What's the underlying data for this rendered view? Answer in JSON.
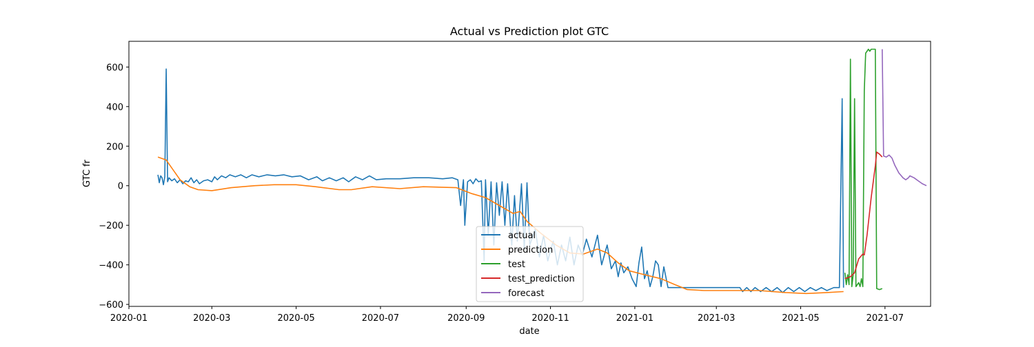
{
  "chart_data": {
    "type": "line",
    "title": "Actual vs Prediction plot GTC",
    "xlabel": "date",
    "ylabel": "GTC fr",
    "xlim": [
      "2020-01-01",
      "2021-08-03"
    ],
    "ylim": [
      -610,
      730
    ],
    "x_ticks": [
      "2020-01",
      "2020-03",
      "2020-05",
      "2020-07",
      "2020-09",
      "2020-11",
      "2021-01",
      "2021-03",
      "2021-05",
      "2021-07"
    ],
    "y_ticks": [
      -600,
      -400,
      -200,
      0,
      200,
      400,
      600
    ],
    "grid": false,
    "legend_position": "lower center",
    "series": [
      {
        "name": "actual",
        "color": "#1f77b4",
        "points": [
          [
            "2020-01-22",
            55
          ],
          [
            "2020-01-23",
            15
          ],
          [
            "2020-01-24",
            50
          ],
          [
            "2020-01-25",
            40
          ],
          [
            "2020-01-26",
            5
          ],
          [
            "2020-01-27",
            45
          ],
          [
            "2020-01-28",
            590
          ],
          [
            "2020-01-29",
            20
          ],
          [
            "2020-01-30",
            40
          ],
          [
            "2020-02-01",
            25
          ],
          [
            "2020-02-03",
            35
          ],
          [
            "2020-02-05",
            15
          ],
          [
            "2020-02-07",
            30
          ],
          [
            "2020-02-09",
            10
          ],
          [
            "2020-02-11",
            25
          ],
          [
            "2020-02-13",
            20
          ],
          [
            "2020-02-15",
            40
          ],
          [
            "2020-02-17",
            15
          ],
          [
            "2020-02-19",
            30
          ],
          [
            "2020-02-21",
            10
          ],
          [
            "2020-02-24",
            25
          ],
          [
            "2020-02-27",
            30
          ],
          [
            "2020-03-01",
            20
          ],
          [
            "2020-03-03",
            45
          ],
          [
            "2020-03-05",
            30
          ],
          [
            "2020-03-08",
            50
          ],
          [
            "2020-03-11",
            40
          ],
          [
            "2020-03-14",
            55
          ],
          [
            "2020-03-18",
            45
          ],
          [
            "2020-03-22",
            55
          ],
          [
            "2020-03-26",
            40
          ],
          [
            "2020-03-30",
            55
          ],
          [
            "2020-04-04",
            45
          ],
          [
            "2020-04-10",
            55
          ],
          [
            "2020-04-16",
            50
          ],
          [
            "2020-04-22",
            55
          ],
          [
            "2020-04-28",
            45
          ],
          [
            "2020-05-04",
            50
          ],
          [
            "2020-05-10",
            30
          ],
          [
            "2020-05-16",
            45
          ],
          [
            "2020-05-20",
            25
          ],
          [
            "2020-05-25",
            40
          ],
          [
            "2020-05-30",
            25
          ],
          [
            "2020-06-04",
            40
          ],
          [
            "2020-06-08",
            20
          ],
          [
            "2020-06-13",
            45
          ],
          [
            "2020-06-18",
            30
          ],
          [
            "2020-06-23",
            50
          ],
          [
            "2020-06-28",
            30
          ],
          [
            "2020-07-05",
            35
          ],
          [
            "2020-07-15",
            35
          ],
          [
            "2020-07-25",
            40
          ],
          [
            "2020-08-05",
            40
          ],
          [
            "2020-08-15",
            35
          ],
          [
            "2020-08-22",
            40
          ],
          [
            "2020-08-26",
            30
          ],
          [
            "2020-08-28",
            -100
          ],
          [
            "2020-08-30",
            30
          ],
          [
            "2020-08-31",
            -200
          ],
          [
            "2020-09-02",
            20
          ],
          [
            "2020-09-04",
            30
          ],
          [
            "2020-09-06",
            10
          ],
          [
            "2020-09-08",
            35
          ],
          [
            "2020-09-10",
            20
          ],
          [
            "2020-09-12",
            25
          ],
          [
            "2020-09-14",
            -380
          ],
          [
            "2020-09-15",
            30
          ],
          [
            "2020-09-17",
            -250
          ],
          [
            "2020-09-19",
            20
          ],
          [
            "2020-09-21",
            -300
          ],
          [
            "2020-09-23",
            15
          ],
          [
            "2020-09-25",
            -150
          ],
          [
            "2020-09-27",
            20
          ],
          [
            "2020-09-29",
            -200
          ],
          [
            "2020-10-01",
            10
          ],
          [
            "2020-10-04",
            -300
          ],
          [
            "2020-10-06",
            -50
          ],
          [
            "2020-10-08",
            -280
          ],
          [
            "2020-10-11",
            10
          ],
          [
            "2020-10-13",
            -320
          ],
          [
            "2020-10-15",
            15
          ],
          [
            "2020-10-17",
            -300
          ],
          [
            "2020-10-21",
            -220
          ],
          [
            "2020-10-24",
            -360
          ],
          [
            "2020-10-27",
            -250
          ],
          [
            "2020-10-30",
            -380
          ],
          [
            "2020-11-03",
            -280
          ],
          [
            "2020-11-06",
            -400
          ],
          [
            "2020-11-09",
            -300
          ],
          [
            "2020-11-12",
            -380
          ],
          [
            "2020-11-15",
            -260
          ],
          [
            "2020-11-18",
            -400
          ],
          [
            "2020-11-21",
            -300
          ],
          [
            "2020-11-24",
            -350
          ],
          [
            "2020-11-27",
            -270
          ],
          [
            "2020-12-01",
            -360
          ],
          [
            "2020-12-05",
            -250
          ],
          [
            "2020-12-08",
            -400
          ],
          [
            "2020-12-12",
            -300
          ],
          [
            "2020-12-15",
            -420
          ],
          [
            "2020-12-18",
            -380
          ],
          [
            "2020-12-20",
            -460
          ],
          [
            "2020-12-22",
            -390
          ],
          [
            "2020-12-24",
            -440
          ],
          [
            "2020-12-27",
            -410
          ],
          [
            "2020-12-30",
            -470
          ],
          [
            "2021-01-02",
            -510
          ],
          [
            "2021-01-04",
            -390
          ],
          [
            "2021-01-06",
            -310
          ],
          [
            "2021-01-08",
            -470
          ],
          [
            "2021-01-10",
            -430
          ],
          [
            "2021-01-12",
            -510
          ],
          [
            "2021-01-14",
            -460
          ],
          [
            "2021-01-16",
            -380
          ],
          [
            "2021-01-18",
            -400
          ],
          [
            "2021-01-20",
            -510
          ],
          [
            "2021-01-22",
            -410
          ],
          [
            "2021-01-25",
            -515
          ],
          [
            "2021-03-18",
            -515
          ],
          [
            "2021-03-20",
            -535
          ],
          [
            "2021-03-23",
            -515
          ],
          [
            "2021-03-26",
            -535
          ],
          [
            "2021-03-29",
            -515
          ],
          [
            "2021-04-02",
            -535
          ],
          [
            "2021-04-06",
            -515
          ],
          [
            "2021-04-10",
            -535
          ],
          [
            "2021-04-14",
            -515
          ],
          [
            "2021-04-18",
            -540
          ],
          [
            "2021-04-22",
            -515
          ],
          [
            "2021-04-26",
            -535
          ],
          [
            "2021-04-30",
            -515
          ],
          [
            "2021-05-04",
            -535
          ],
          [
            "2021-05-08",
            -515
          ],
          [
            "2021-05-12",
            -530
          ],
          [
            "2021-05-16",
            -515
          ],
          [
            "2021-05-20",
            -530
          ],
          [
            "2021-05-25",
            -515
          ],
          [
            "2021-05-29",
            -515
          ],
          [
            "2021-05-31",
            440
          ],
          [
            "2021-06-01",
            -515
          ]
        ]
      },
      {
        "name": "prediction",
        "color": "#ff7f0e",
        "points": [
          [
            "2020-01-22",
            145
          ],
          [
            "2020-01-28",
            130
          ],
          [
            "2020-02-02",
            80
          ],
          [
            "2020-02-07",
            30
          ],
          [
            "2020-02-14",
            -5
          ],
          [
            "2020-02-20",
            -20
          ],
          [
            "2020-03-01",
            -25
          ],
          [
            "2020-03-15",
            -10
          ],
          [
            "2020-04-01",
            0
          ],
          [
            "2020-04-15",
            5
          ],
          [
            "2020-05-01",
            5
          ],
          [
            "2020-05-15",
            -5
          ],
          [
            "2020-06-01",
            -20
          ],
          [
            "2020-06-10",
            -20
          ],
          [
            "2020-06-25",
            -5
          ],
          [
            "2020-07-15",
            -15
          ],
          [
            "2020-08-01",
            -5
          ],
          [
            "2020-08-25",
            -10
          ],
          [
            "2020-09-05",
            -40
          ],
          [
            "2020-09-15",
            -60
          ],
          [
            "2020-09-25",
            -100
          ],
          [
            "2020-10-05",
            -140
          ],
          [
            "2020-10-10",
            -130
          ],
          [
            "2020-10-15",
            -180
          ],
          [
            "2020-10-25",
            -240
          ],
          [
            "2020-11-05",
            -300
          ],
          [
            "2020-11-15",
            -340
          ],
          [
            "2020-11-25",
            -345
          ],
          [
            "2020-12-05",
            -320
          ],
          [
            "2020-12-12",
            -340
          ],
          [
            "2020-12-20",
            -390
          ],
          [
            "2020-12-28",
            -430
          ],
          [
            "2021-01-08",
            -450
          ],
          [
            "2021-01-20",
            -470
          ],
          [
            "2021-01-30",
            -500
          ],
          [
            "2021-02-08",
            -525
          ],
          [
            "2021-02-20",
            -530
          ],
          [
            "2021-03-15",
            -530
          ],
          [
            "2021-04-01",
            -530
          ],
          [
            "2021-04-20",
            -540
          ],
          [
            "2021-05-05",
            -545
          ],
          [
            "2021-05-20",
            -540
          ],
          [
            "2021-06-01",
            -535
          ]
        ]
      },
      {
        "name": "test",
        "color": "#2ca02c",
        "points": [
          [
            "2021-06-02",
            -440
          ],
          [
            "2021-06-03",
            -500
          ],
          [
            "2021-06-04",
            -450
          ],
          [
            "2021-06-05",
            -500
          ],
          [
            "2021-06-06",
            640
          ],
          [
            "2021-06-07",
            -510
          ],
          [
            "2021-06-08",
            -450
          ],
          [
            "2021-06-09",
            440
          ],
          [
            "2021-06-10",
            -510
          ],
          [
            "2021-06-12",
            -490
          ],
          [
            "2021-06-13",
            -510
          ],
          [
            "2021-06-14",
            -470
          ],
          [
            "2021-06-15",
            -510
          ],
          [
            "2021-06-16",
            480
          ],
          [
            "2021-06-17",
            670
          ],
          [
            "2021-06-18",
            680
          ],
          [
            "2021-06-19",
            690
          ],
          [
            "2021-06-20",
            680
          ],
          [
            "2021-06-21",
            690
          ],
          [
            "2021-06-24",
            690
          ],
          [
            "2021-06-25",
            -520
          ],
          [
            "2021-06-27",
            -525
          ],
          [
            "2021-06-29",
            -520
          ]
        ]
      },
      {
        "name": "test_prediction",
        "color": "#d62728",
        "points": [
          [
            "2021-06-02",
            -470
          ],
          [
            "2021-06-06",
            -460
          ],
          [
            "2021-06-09",
            -440
          ],
          [
            "2021-06-12",
            -370
          ],
          [
            "2021-06-15",
            -345
          ],
          [
            "2021-06-16",
            -350
          ],
          [
            "2021-06-18",
            -250
          ],
          [
            "2021-06-21",
            -60
          ],
          [
            "2021-06-24",
            100
          ],
          [
            "2021-06-25",
            170
          ],
          [
            "2021-06-27",
            160
          ],
          [
            "2021-06-29",
            145
          ]
        ]
      },
      {
        "name": "forecast",
        "color": "#9467bd",
        "points": [
          [
            "2021-06-29",
            690
          ],
          [
            "2021-06-30",
            150
          ],
          [
            "2021-07-02",
            145
          ],
          [
            "2021-07-04",
            155
          ],
          [
            "2021-07-06",
            140
          ],
          [
            "2021-07-08",
            105
          ],
          [
            "2021-07-11",
            65
          ],
          [
            "2021-07-14",
            40
          ],
          [
            "2021-07-16",
            30
          ],
          [
            "2021-07-18",
            40
          ],
          [
            "2021-07-19",
            50
          ],
          [
            "2021-07-22",
            40
          ],
          [
            "2021-07-25",
            25
          ],
          [
            "2021-07-28",
            10
          ],
          [
            "2021-07-31",
            0
          ]
        ]
      }
    ]
  }
}
